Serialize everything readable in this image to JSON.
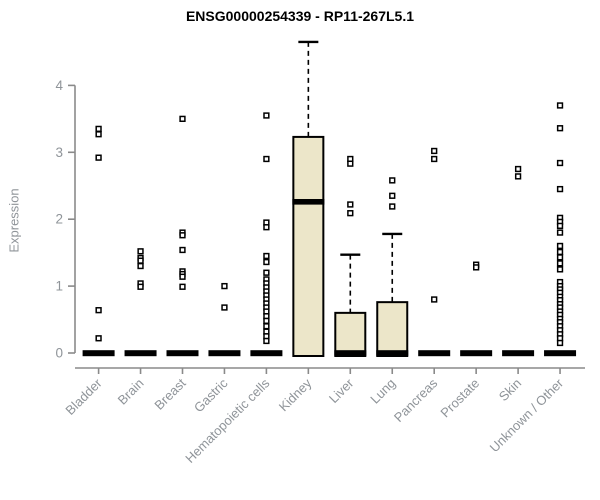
{
  "title": "ENSG00000254339 - RP11-267L5.1",
  "ylabel": "Expression",
  "colors": {
    "box_fill": "#ece6c9",
    "box_stroke": "#000000",
    "median": "#000000",
    "axis": "#8a8a8a",
    "tick_label": "#8f9499",
    "title": "#000000",
    "outlier_fill": "#ffffff",
    "outlier_stroke": "#000000",
    "background": "#ffffff"
  },
  "chart_data": {
    "type": "boxplot",
    "title": "ENSG00000254339 - RP11-267L5.1",
    "xlabel": "",
    "ylabel": "Expression",
    "ylim": [
      0,
      4.7
    ],
    "yticks": [
      0,
      1,
      2,
      3,
      4
    ],
    "grid": false,
    "categories": [
      "Bladder",
      "Brain",
      "Breast",
      "Gastric",
      "Hematopoietic cells",
      "Kidney",
      "Liver",
      "Lung",
      "Pancreas",
      "Prostate",
      "Skin",
      "Unknown / Other"
    ],
    "series": [
      {
        "label": "Bladder",
        "q1": 0,
        "median": 0,
        "q3": 0,
        "whisker_low": 0,
        "whisker_high": 0,
        "outliers": [
          3.35,
          3.27,
          2.92,
          0.64,
          0.22
        ]
      },
      {
        "label": "Brain",
        "q1": 0,
        "median": 0,
        "q3": 0,
        "whisker_low": 0,
        "whisker_high": 0,
        "outliers": [
          1.52,
          1.42,
          1.38,
          1.3,
          1.04,
          0.99
        ]
      },
      {
        "label": "Breast",
        "q1": 0,
        "median": 0,
        "q3": 0,
        "whisker_low": 0,
        "whisker_high": 0,
        "outliers": [
          3.5,
          1.8,
          1.76,
          1.54,
          1.22,
          1.18,
          1.14,
          0.99
        ]
      },
      {
        "label": "Gastric",
        "q1": 0,
        "median": 0,
        "q3": 0,
        "whisker_low": 0,
        "whisker_high": 0,
        "outliers": [
          1.0,
          0.68
        ]
      },
      {
        "label": "Hematopoietic cells",
        "q1": 0,
        "median": 0,
        "q3": 0,
        "whisker_low": 0,
        "whisker_high": 0,
        "outliers": [
          3.55,
          2.9,
          1.95,
          1.88,
          1.45,
          1.36,
          1.2,
          1.1,
          1.04,
          0.98,
          0.92,
          0.86,
          0.8,
          0.74,
          0.68,
          0.62,
          0.55,
          0.48,
          0.4,
          0.32,
          0.25,
          0.18
        ]
      },
      {
        "label": "Kidney",
        "q1": 0,
        "median": 2.26,
        "q3": 3.23,
        "whisker_low": 0,
        "whisker_high": 4.65,
        "outliers": []
      },
      {
        "label": "Liver",
        "q1": 0,
        "median": 0,
        "q3": 0.6,
        "whisker_low": 0,
        "whisker_high": 1.47,
        "outliers": [
          2.9,
          2.83,
          2.22,
          2.09
        ]
      },
      {
        "label": "Lung",
        "q1": 0,
        "median": 0,
        "q3": 0.76,
        "whisker_low": 0,
        "whisker_high": 1.78,
        "outliers": [
          2.58,
          2.35,
          2.19
        ]
      },
      {
        "label": "Pancreas",
        "q1": 0,
        "median": 0,
        "q3": 0,
        "whisker_low": 0,
        "whisker_high": 0,
        "outliers": [
          3.02,
          2.9,
          0.8
        ]
      },
      {
        "label": "Prostate",
        "q1": 0,
        "median": 0,
        "q3": 0,
        "whisker_low": 0,
        "whisker_high": 0,
        "outliers": [
          1.32,
          1.28
        ]
      },
      {
        "label": "Skin",
        "q1": 0,
        "median": 0,
        "q3": 0,
        "whisker_low": 0,
        "whisker_high": 0,
        "outliers": [
          2.75,
          2.64
        ]
      },
      {
        "label": "Unknown / Other",
        "q1": 0,
        "median": 0,
        "q3": 0,
        "whisker_low": 0,
        "whisker_high": 0,
        "outliers": [
          3.7,
          3.36,
          2.84,
          2.45,
          2.02,
          1.96,
          1.9,
          1.8,
          1.6,
          1.51,
          1.43,
          1.34,
          1.25,
          1.06,
          1.0,
          0.95,
          0.9,
          0.84,
          0.79,
          0.73,
          0.68,
          0.62,
          0.57,
          0.51,
          0.46,
          0.4,
          0.34,
          0.28,
          0.22,
          0.15
        ]
      }
    ]
  }
}
